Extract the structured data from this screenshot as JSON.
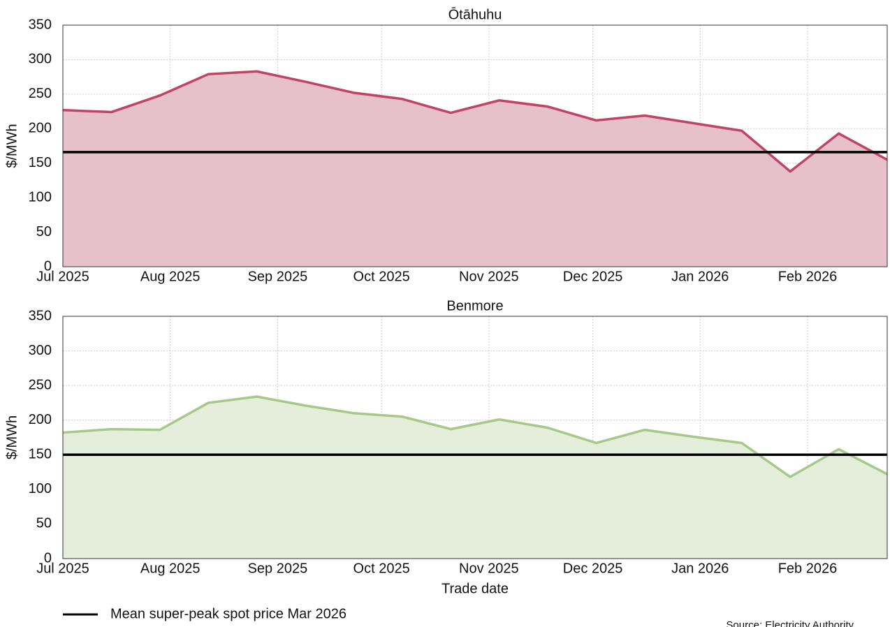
{
  "chart_data": [
    {
      "type": "area",
      "title": "Ōtāhuhu",
      "ylabel": "$/MWh",
      "color": "#c0446a",
      "fill": "#e6c0cb",
      "x": [
        0,
        14,
        28,
        42,
        56,
        70,
        84,
        98,
        112,
        126,
        140,
        154,
        168,
        182,
        196,
        210,
        224,
        238
      ],
      "values": [
        227,
        224,
        248,
        279,
        283,
        268,
        252,
        243,
        223,
        241,
        232,
        212,
        219,
        208,
        197,
        138,
        193,
        155
      ],
      "reference": {
        "value": 166,
        "color": "#000000"
      },
      "xlim": [
        0,
        238
      ],
      "xticks": [
        {
          "value": 0,
          "label": "Jul 2025"
        },
        {
          "value": 31,
          "label": "Aug 2025"
        },
        {
          "value": 62,
          "label": "Sep 2025"
        },
        {
          "value": 92,
          "label": "Oct 2025"
        },
        {
          "value": 123,
          "label": "Nov 2025"
        },
        {
          "value": 153,
          "label": "Dec 2025"
        },
        {
          "value": 184,
          "label": "Jan 2026"
        },
        {
          "value": 215,
          "label": "Feb 2026"
        }
      ],
      "ylim": [
        0,
        350
      ],
      "yticks": [
        0,
        50,
        100,
        150,
        200,
        250,
        300,
        350
      ],
      "grid": true
    },
    {
      "type": "area",
      "title": "Benmore",
      "ylabel": "$/MWh",
      "xlabel": "Trade date",
      "color": "#a6c98a",
      "fill": "#e4eeda",
      "x": [
        0,
        14,
        28,
        42,
        56,
        70,
        84,
        98,
        112,
        126,
        140,
        154,
        168,
        182,
        196,
        210,
        224,
        238
      ],
      "values": [
        182,
        187,
        186,
        225,
        234,
        221,
        210,
        205,
        187,
        201,
        189,
        167,
        186,
        176,
        167,
        118,
        158,
        122
      ],
      "reference": {
        "value": 150,
        "color": "#000000"
      },
      "xlim": [
        0,
        238
      ],
      "xticks": [
        {
          "value": 0,
          "label": "Jul 2025"
        },
        {
          "value": 31,
          "label": "Aug 2025"
        },
        {
          "value": 62,
          "label": "Sep 2025"
        },
        {
          "value": 92,
          "label": "Oct 2025"
        },
        {
          "value": 123,
          "label": "Nov 2025"
        },
        {
          "value": 153,
          "label": "Dec 2025"
        },
        {
          "value": 184,
          "label": "Jan 2026"
        },
        {
          "value": 215,
          "label": "Feb 2026"
        }
      ],
      "ylim": [
        0,
        350
      ],
      "yticks": [
        0,
        50,
        100,
        150,
        200,
        250,
        300,
        350
      ],
      "grid": true
    }
  ],
  "legend": {
    "label": "Mean super-peak spot price Mar 2026",
    "color": "#000000"
  },
  "source": "Source: Electricity Authority"
}
